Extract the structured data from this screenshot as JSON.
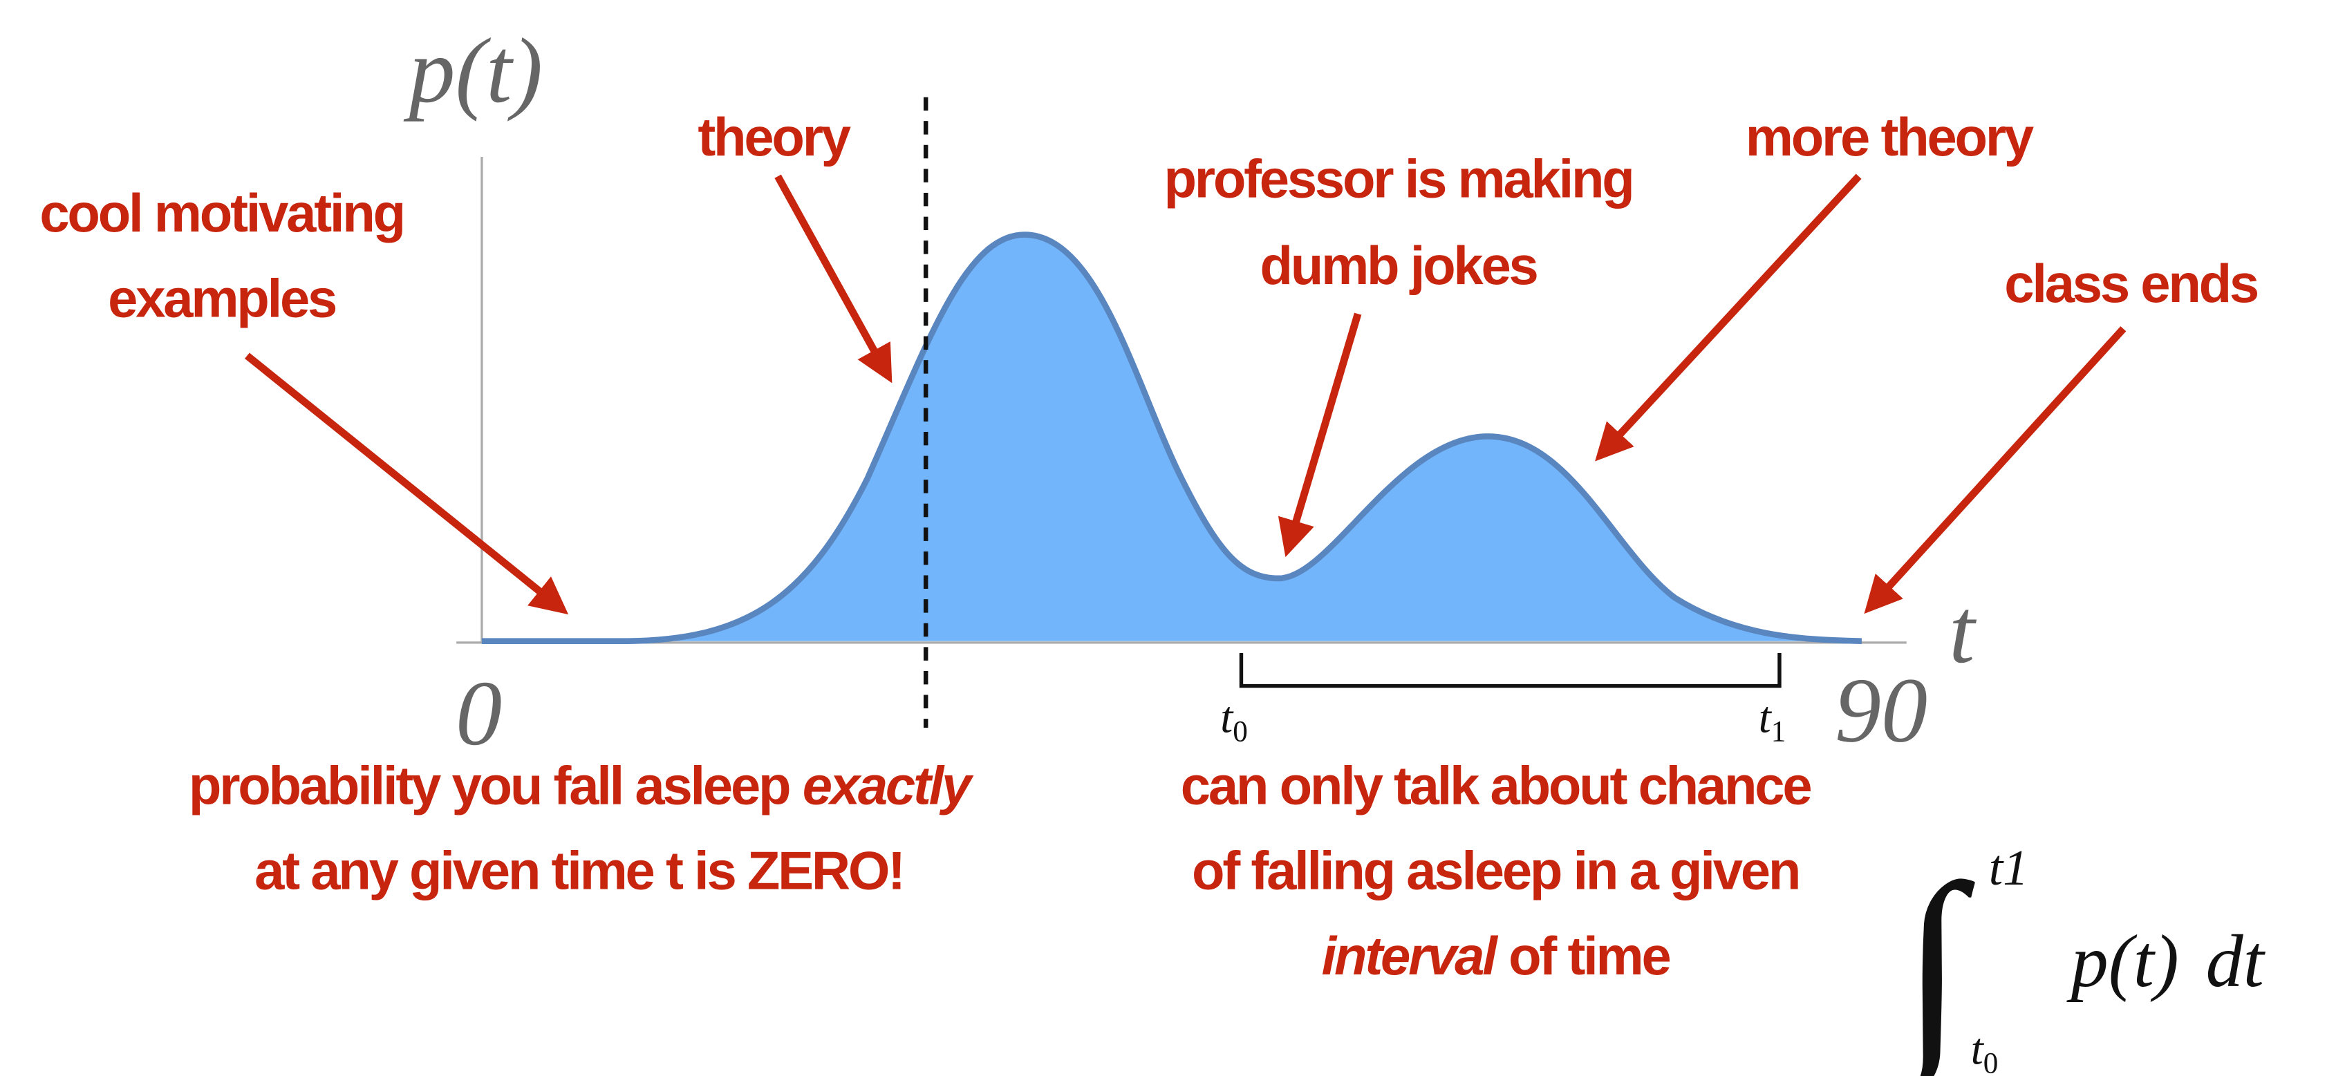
{
  "axis": {
    "y_label": "p(t)",
    "x_label": "t",
    "x_start": "0",
    "x_end": "90"
  },
  "annotations": {
    "start": [
      "cool motivating",
      "examples"
    ],
    "rise": [
      "theory"
    ],
    "dip": [
      "professor is making",
      "dumb jokes"
    ],
    "second_peak": [
      "more theory"
    ],
    "end": [
      "class ends"
    ]
  },
  "note_left": {
    "line1": "probability you fall asleep",
    "line1_italic": "exactly",
    "line2": "at any given time t is ZERO!"
  },
  "note_right": {
    "line1": "can only talk about chance",
    "line2": "of falling asleep in a given",
    "line3_italic": "interval",
    "line3": "of time"
  },
  "interval": {
    "start": {
      "base": "t",
      "sub": "0"
    },
    "end": {
      "base": "t",
      "sub": "1"
    }
  },
  "integral": {
    "symbol": "∫",
    "upper": "t1",
    "lower": {
      "base": "t",
      "sub": "0"
    },
    "integrand": "p(t)",
    "differential": "dt"
  }
}
